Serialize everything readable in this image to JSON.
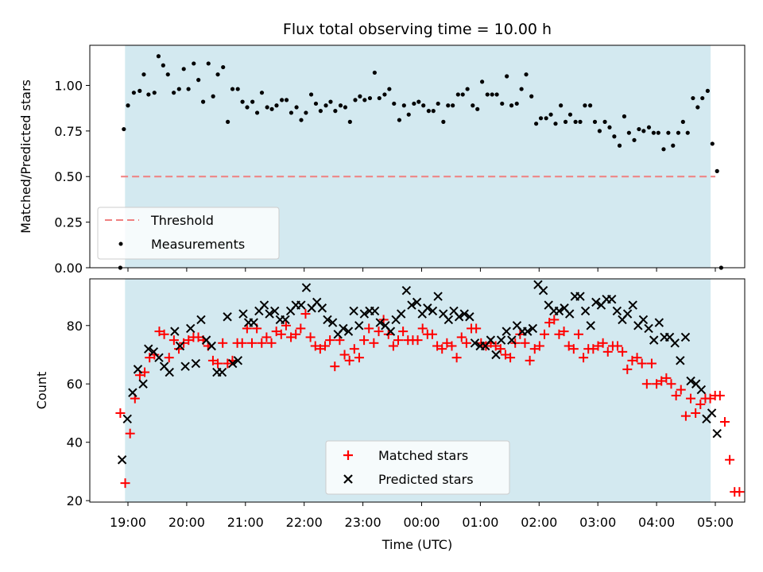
{
  "chart_data": [
    {
      "type": "scatter",
      "title": "Flux total observing time = 10.00 h",
      "xlabel": "",
      "ylabel": "Matched/Predicted stars",
      "ylim": [
        0,
        1.22
      ],
      "yticks": [
        "0.00",
        "0.25",
        "0.50",
        "0.75",
        "1.00"
      ],
      "ytick_values": [
        0,
        0.25,
        0.5,
        0.75,
        1.0
      ],
      "xlim_hours": [
        18.35,
        5.55
      ],
      "shaded_span_hours": [
        18.95,
        4.92
      ],
      "shade_color": "#d3e9f0",
      "threshold": {
        "label": "Threshold",
        "value": 0.5,
        "x_start": 18.88,
        "x_end": 5.0,
        "color": "#f08080"
      },
      "series": [
        {
          "name": "Measurements",
          "color": "#000000",
          "points": [
            [
              18.87,
              0.0
            ],
            [
              18.93,
              0.76
            ],
            [
              19.0,
              0.89
            ],
            [
              19.1,
              0.96
            ],
            [
              19.2,
              0.97
            ],
            [
              19.27,
              1.06
            ],
            [
              19.35,
              0.95
            ],
            [
              19.45,
              0.96
            ],
            [
              19.52,
              1.16
            ],
            [
              19.6,
              1.11
            ],
            [
              19.68,
              1.06
            ],
            [
              19.78,
              0.96
            ],
            [
              19.87,
              0.98
            ],
            [
              19.95,
              1.09
            ],
            [
              20.03,
              0.98
            ],
            [
              20.12,
              1.12
            ],
            [
              20.2,
              1.03
            ],
            [
              20.28,
              0.91
            ],
            [
              20.37,
              1.12
            ],
            [
              20.45,
              0.94
            ],
            [
              20.53,
              1.06
            ],
            [
              20.62,
              1.1
            ],
            [
              20.7,
              0.8
            ],
            [
              20.78,
              0.98
            ],
            [
              20.87,
              0.98
            ],
            [
              20.95,
              0.91
            ],
            [
              21.03,
              0.88
            ],
            [
              21.12,
              0.91
            ],
            [
              21.2,
              0.85
            ],
            [
              21.28,
              0.96
            ],
            [
              21.37,
              0.88
            ],
            [
              21.45,
              0.87
            ],
            [
              21.53,
              0.89
            ],
            [
              21.62,
              0.92
            ],
            [
              21.7,
              0.92
            ],
            [
              21.78,
              0.85
            ],
            [
              21.87,
              0.88
            ],
            [
              21.95,
              0.81
            ],
            [
              22.03,
              0.85
            ],
            [
              22.12,
              0.95
            ],
            [
              22.2,
              0.9
            ],
            [
              22.28,
              0.86
            ],
            [
              22.37,
              0.89
            ],
            [
              22.45,
              0.91
            ],
            [
              22.53,
              0.86
            ],
            [
              22.62,
              0.89
            ],
            [
              22.7,
              0.88
            ],
            [
              22.78,
              0.8
            ],
            [
              22.87,
              0.92
            ],
            [
              22.95,
              0.94
            ],
            [
              23.03,
              0.92
            ],
            [
              23.12,
              0.93
            ],
            [
              23.2,
              1.07
            ],
            [
              23.28,
              0.93
            ],
            [
              23.37,
              0.95
            ],
            [
              23.45,
              0.98
            ],
            [
              23.53,
              0.9
            ],
            [
              23.62,
              0.81
            ],
            [
              23.7,
              0.89
            ],
            [
              23.78,
              0.84
            ],
            [
              23.87,
              0.9
            ],
            [
              23.95,
              0.91
            ],
            [
              24.03,
              0.89
            ],
            [
              24.12,
              0.86
            ],
            [
              24.2,
              0.86
            ],
            [
              24.28,
              0.9
            ],
            [
              24.37,
              0.8
            ],
            [
              24.45,
              0.89
            ],
            [
              24.53,
              0.89
            ],
            [
              24.62,
              0.95
            ],
            [
              24.7,
              0.95
            ],
            [
              24.78,
              0.98
            ],
            [
              24.87,
              0.89
            ],
            [
              24.95,
              0.87
            ],
            [
              25.03,
              1.02
            ],
            [
              25.12,
              0.95
            ],
            [
              25.2,
              0.95
            ],
            [
              25.28,
              0.95
            ],
            [
              25.37,
              0.9
            ],
            [
              25.45,
              1.05
            ],
            [
              25.53,
              0.89
            ],
            [
              25.62,
              0.9
            ],
            [
              25.7,
              0.98
            ],
            [
              25.78,
              1.06
            ],
            [
              25.87,
              0.94
            ],
            [
              25.95,
              0.79
            ],
            [
              26.03,
              0.82
            ],
            [
              26.12,
              0.82
            ],
            [
              26.2,
              0.84
            ],
            [
              26.28,
              0.79
            ],
            [
              26.37,
              0.89
            ],
            [
              26.45,
              0.8
            ],
            [
              26.53,
              0.84
            ],
            [
              26.62,
              0.8
            ],
            [
              26.7,
              0.8
            ],
            [
              26.78,
              0.89
            ],
            [
              26.87,
              0.89
            ],
            [
              26.95,
              0.8
            ],
            [
              27.03,
              0.75
            ],
            [
              27.12,
              0.8
            ],
            [
              27.2,
              0.77
            ],
            [
              27.28,
              0.72
            ],
            [
              27.37,
              0.67
            ],
            [
              27.45,
              0.83
            ],
            [
              27.53,
              0.74
            ],
            [
              27.62,
              0.7
            ],
            [
              27.7,
              0.76
            ],
            [
              27.78,
              0.75
            ],
            [
              27.87,
              0.77
            ],
            [
              27.95,
              0.74
            ],
            [
              28.03,
              0.74
            ],
            [
              28.12,
              0.65
            ],
            [
              28.2,
              0.74
            ],
            [
              28.28,
              0.67
            ],
            [
              28.37,
              0.74
            ],
            [
              28.45,
              0.8
            ],
            [
              28.53,
              0.74
            ],
            [
              28.62,
              0.93
            ],
            [
              28.7,
              0.88
            ],
            [
              28.78,
              0.93
            ],
            [
              28.87,
              0.97
            ],
            [
              28.95,
              0.68
            ],
            [
              29.03,
              0.53
            ],
            [
              29.1,
              0.0
            ]
          ]
        }
      ],
      "legend": {
        "placement": "bottom-left",
        "entries": [
          "Threshold",
          "Measurements"
        ]
      }
    },
    {
      "type": "scatter",
      "title": "",
      "xlabel": "Time (UTC)",
      "ylabel": "Count",
      "ylim": [
        19.5,
        96
      ],
      "yticks": [
        "20",
        "40",
        "60",
        "80"
      ],
      "ytick_values": [
        20,
        40,
        60,
        80
      ],
      "xticks": [
        "19:00",
        "20:00",
        "21:00",
        "22:00",
        "23:00",
        "00:00",
        "01:00",
        "02:00",
        "03:00",
        "04:00",
        "05:00"
      ],
      "xtick_hours": [
        19,
        20,
        21,
        22,
        23,
        24,
        25,
        26,
        27,
        28,
        29
      ],
      "x_step_hours": 0.083,
      "series": [
        {
          "name": "Matched stars",
          "color": "#ff0000",
          "marker": "plus",
          "x_start": 18.87,
          "values": [
            50,
            26,
            43,
            55,
            63,
            64,
            69,
            70,
            78,
            77,
            69,
            75,
            72,
            74,
            75,
            76,
            76,
            75,
            73,
            68,
            67,
            74,
            67,
            68,
            74,
            74,
            79,
            74,
            79,
            74,
            76,
            74,
            78,
            77,
            80,
            76,
            77,
            79,
            84,
            76,
            73,
            72,
            73,
            75,
            66,
            75,
            70,
            68,
            72,
            69,
            75,
            79,
            74,
            78,
            82,
            77,
            73,
            75,
            78,
            75,
            75,
            75,
            79,
            77,
            77,
            73,
            72,
            74,
            73,
            69,
            76,
            74,
            79,
            79,
            74,
            73,
            74,
            73,
            72,
            70,
            69,
            74,
            77,
            74,
            68,
            72,
            73,
            77,
            81,
            82,
            77,
            78,
            73,
            72,
            77,
            69,
            72,
            72,
            73,
            74,
            71,
            73,
            73,
            71,
            65,
            68,
            69,
            67,
            60,
            67,
            60,
            61,
            62,
            60,
            56,
            58,
            49,
            55,
            50,
            53,
            55,
            55,
            56,
            56,
            47,
            34,
            23,
            23
          ]
        },
        {
          "name": "Predicted stars",
          "color": "#000000",
          "marker": "x",
          "x_start": 18.9,
          "values": [
            34,
            48,
            57,
            65,
            60,
            72,
            71,
            69,
            66,
            64,
            78,
            73,
            66,
            79,
            67,
            82,
            75,
            73,
            64,
            64,
            83,
            67,
            68,
            84,
            81,
            81,
            85,
            87,
            84,
            85,
            82,
            82,
            85,
            87,
            87,
            93,
            86,
            88,
            86,
            82,
            81,
            77,
            79,
            78,
            85,
            80,
            84,
            85,
            85,
            81,
            80,
            78,
            82,
            84,
            92,
            87,
            88,
            84,
            86,
            85,
            90,
            84,
            82,
            85,
            83,
            84,
            83,
            74,
            73,
            73,
            75,
            70,
            75,
            78,
            75,
            80,
            78,
            78,
            79,
            94,
            92,
            87,
            85,
            85,
            86,
            84,
            90,
            90,
            85,
            80,
            88,
            87,
            89,
            89,
            85,
            82,
            84,
            87,
            80,
            82,
            79,
            75,
            81,
            76,
            76,
            74,
            68,
            76,
            61,
            60,
            58,
            48,
            50,
            43
          ]
        }
      ],
      "legend": {
        "placement": "bottom-center",
        "entries": [
          "Matched stars",
          "Predicted stars"
        ]
      }
    }
  ]
}
